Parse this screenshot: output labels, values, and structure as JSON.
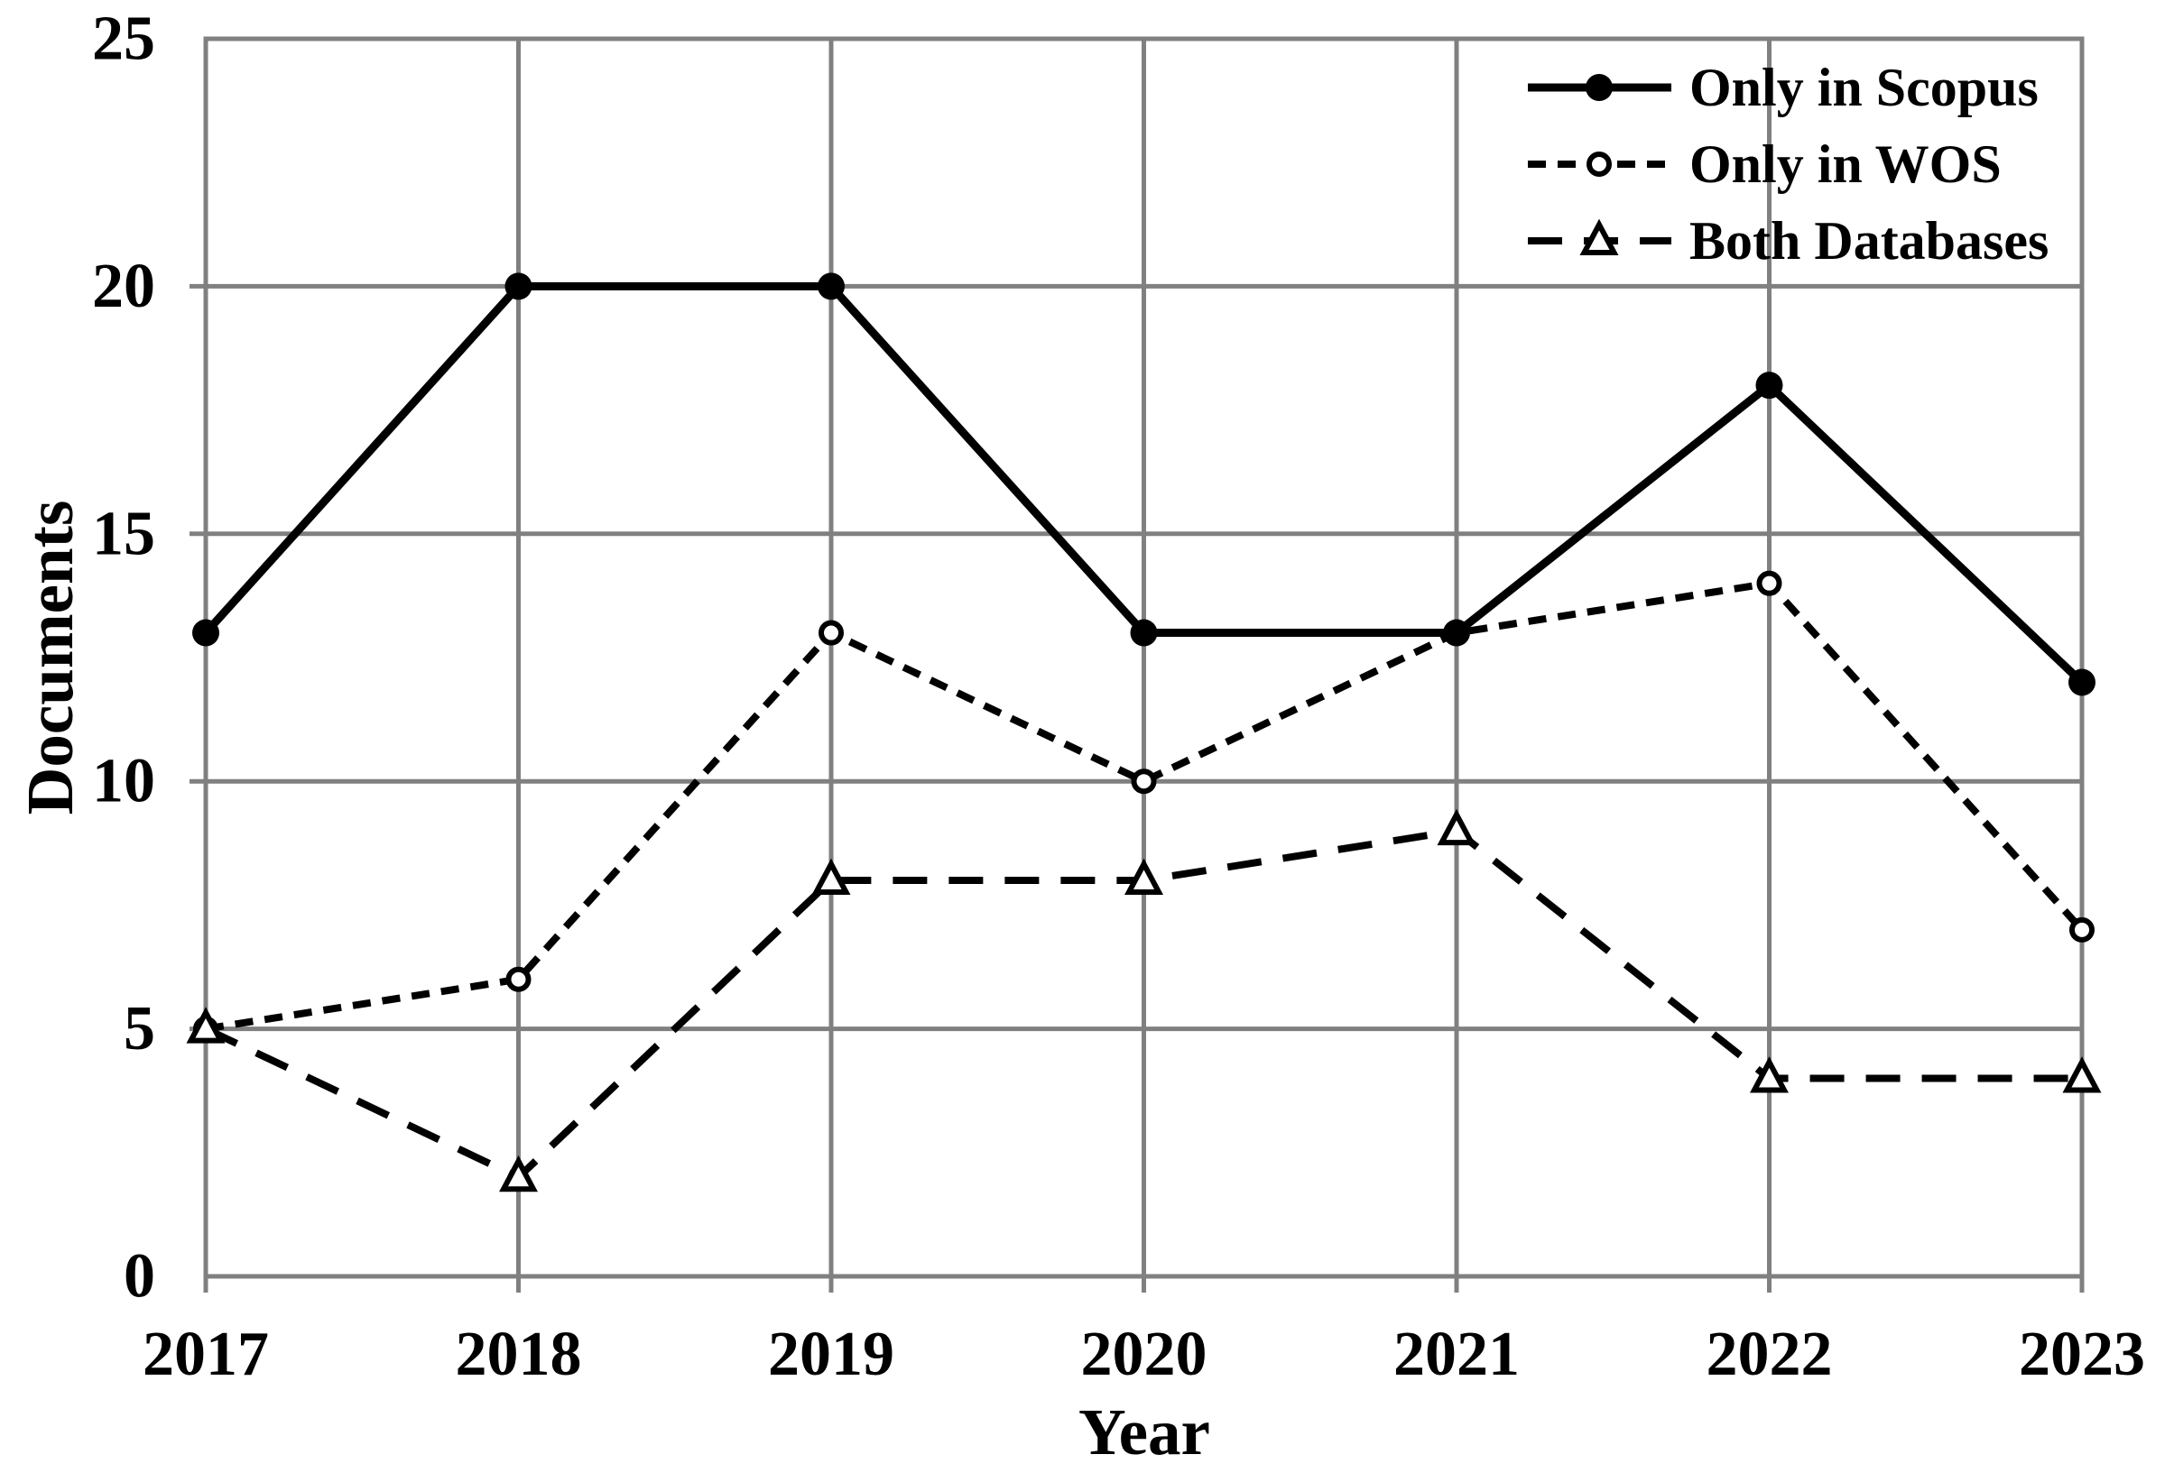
{
  "figure": {
    "background_color": "#ffffff",
    "frame_color": "#808080",
    "data_color": "#000000"
  },
  "chart_data": {
    "type": "line",
    "title": "",
    "xlabel": "Year",
    "ylabel": "Documents",
    "categories": [
      "2017",
      "2018",
      "2019",
      "2020",
      "2021",
      "2022",
      "2023"
    ],
    "series": [
      {
        "name": "Only in Scopus",
        "values": [
          13,
          20,
          20,
          13,
          13,
          18,
          12
        ],
        "marker": "filled-circle",
        "line": "solid"
      },
      {
        "name": "Only in WOS",
        "values": [
          5,
          6,
          13,
          10,
          13,
          14,
          7
        ],
        "marker": "open-circle",
        "line": "dashed-short"
      },
      {
        "name": "Both Databases",
        "values": [
          5,
          2,
          8,
          8,
          9,
          4,
          4
        ],
        "marker": "open-triangle",
        "line": "dashed-long"
      }
    ],
    "ylim": [
      0,
      25
    ],
    "yticks": [
      0,
      5,
      10,
      15,
      20,
      25
    ],
    "ytick_labels": [
      "0",
      "5",
      "10",
      "15",
      "20",
      "25"
    ],
    "grid": true,
    "legend_position": "top-right",
    "z_order": [
      1,
      2,
      0
    ]
  }
}
